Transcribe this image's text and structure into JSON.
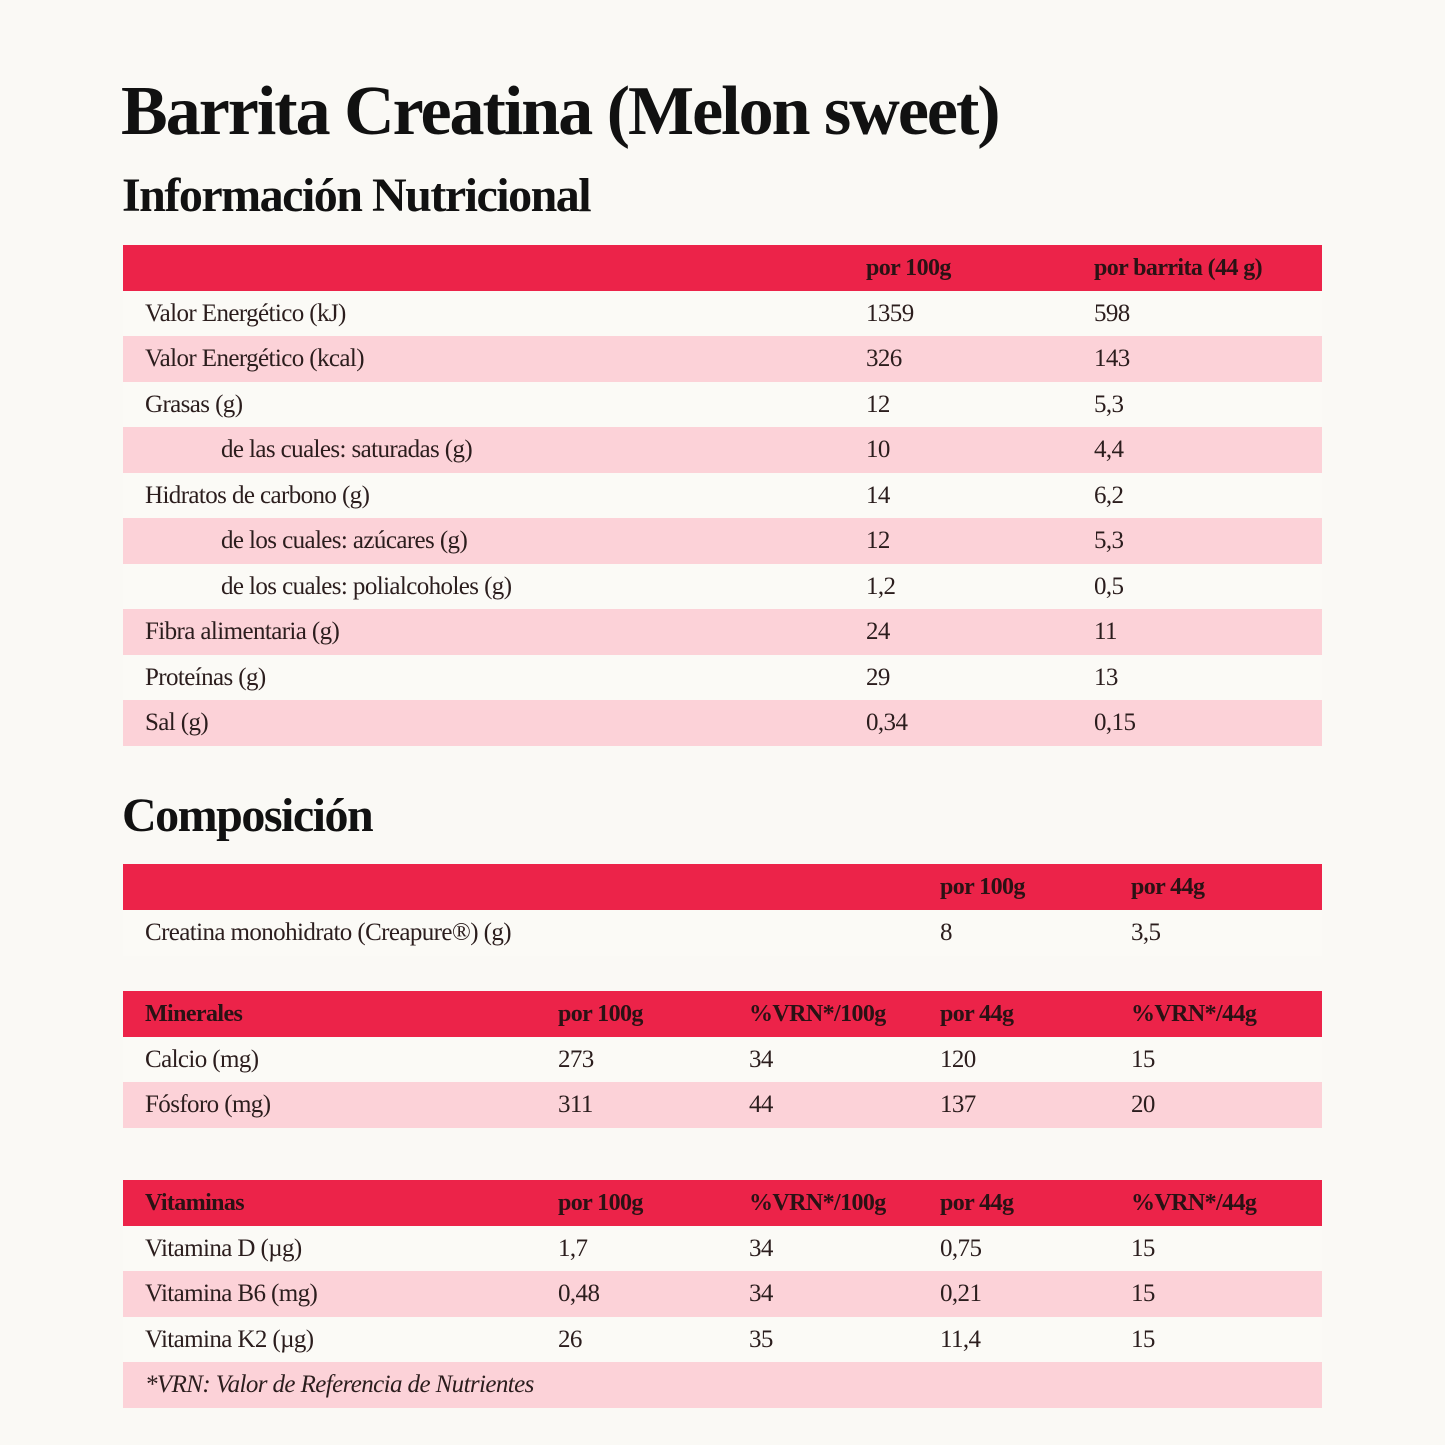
{
  "title": "Barrita Creatina (Melon sweet)",
  "subtitle": "Información Nutricional",
  "nutrition": {
    "header": [
      "por 100g",
      "por barrita (44 g)"
    ],
    "rows": [
      [
        "Valor Energético (kJ)",
        "1359",
        "598"
      ],
      [
        "Valor Energético (kcal)",
        "326",
        "143"
      ],
      [
        "Grasas (g)",
        "12",
        "5,3"
      ],
      [
        "de las cuales: saturadas (g)",
        "10",
        "4,4"
      ],
      [
        "Hidratos de carbono (g)",
        "14",
        "6,2"
      ],
      [
        "de los cuales: azúcares (g)",
        "12",
        "5,3"
      ],
      [
        "de los cuales: polialcoholes (g)",
        "1,2",
        "0,5"
      ],
      [
        "Fibra alimentaria (g)",
        "24",
        "11"
      ],
      [
        "Proteínas (g)",
        "29",
        "13"
      ],
      [
        "Sal (g)",
        "0,34",
        "0,15"
      ]
    ]
  },
  "composition_title": "Composición",
  "composition": {
    "header": [
      "por 100g",
      "por 44g"
    ],
    "rows": [
      [
        "Creatina monohidrato (Creapure®) (g)",
        "8",
        "3,5"
      ]
    ]
  },
  "minerals": {
    "header": [
      "Minerales",
      "por 100g",
      "%VRN*/100g",
      "por 44g",
      "%VRN*/44g"
    ],
    "rows": [
      [
        "Calcio (mg)",
        "273",
        "34",
        "120",
        "15"
      ],
      [
        "Fósforo (mg)",
        "311",
        "44",
        "137",
        "20"
      ]
    ]
  },
  "vitamins": {
    "header": [
      "Vitaminas",
      "por 100g",
      "%VRN*/100g",
      "por 44g",
      "%VRN*/44g"
    ],
    "rows": [
      [
        "Vitamina D (µg)",
        "1,7",
        "34",
        "0,75",
        "15"
      ],
      [
        "Vitamina B6 (mg)",
        "0,48",
        "34",
        "0,21",
        "15"
      ],
      [
        "Vitamina K2 (µg)",
        "26",
        "35",
        "11,4",
        "15"
      ]
    ],
    "footnote": "*VRN: Valor de Referencia de Nutrientes"
  }
}
